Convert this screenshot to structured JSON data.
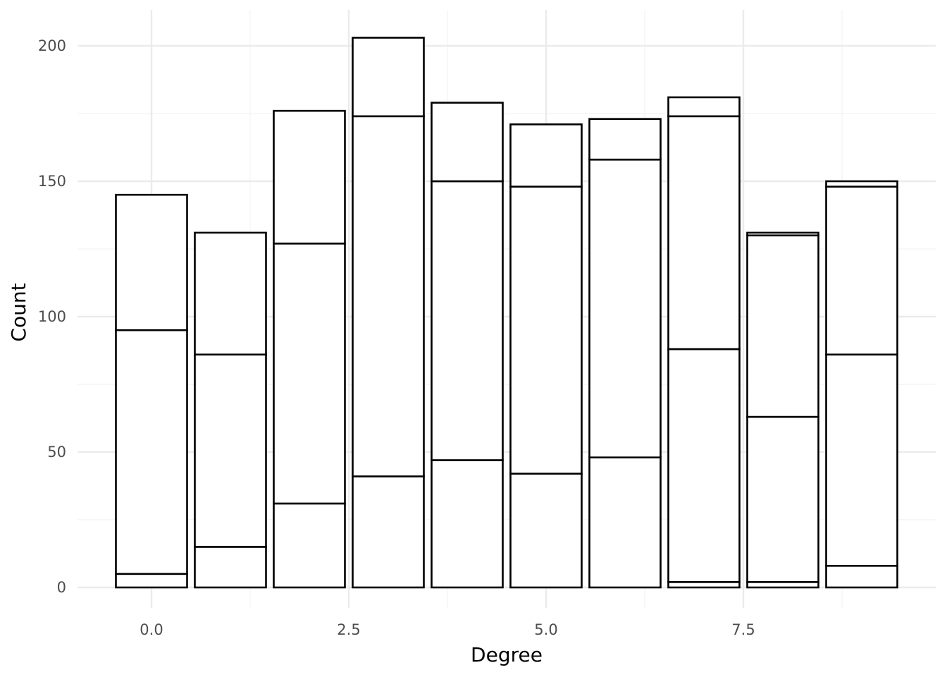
{
  "chart_data": {
    "type": "bar",
    "stacked": true,
    "title": "",
    "xlabel": "Degree",
    "ylabel": "Count",
    "x": [
      0,
      1,
      2,
      3,
      4,
      5,
      6,
      7,
      8,
      9
    ],
    "xlim": [
      -1,
      10
    ],
    "ylim": [
      0,
      210
    ],
    "x_ticks": [
      0,
      2.5,
      5,
      7.5
    ],
    "x_tick_labels": [
      "0.0",
      "2.5",
      "5.0",
      "7.5"
    ],
    "y_ticks": [
      0,
      50,
      100,
      150,
      200
    ],
    "y_tick_labels": [
      "0",
      "50",
      "100",
      "150",
      "200"
    ],
    "grid": true,
    "legend": "none",
    "colors": {
      "fill": "#ffffff",
      "outline": "#000000",
      "grid_major": "#ebebeb",
      "grid_minor": "#f2f2f2"
    },
    "series": [
      {
        "values": [
          5,
          15,
          31,
          41,
          47,
          42,
          48,
          2,
          2,
          8
        ]
      },
      {
        "values": [
          90,
          71,
          96,
          133,
          103,
          106,
          110,
          86,
          61,
          78
        ]
      },
      {
        "values": [
          50,
          45,
          49,
          29,
          29,
          23,
          15,
          86,
          67,
          62
        ]
      },
      {
        "values": [
          0,
          0,
          0,
          0,
          0,
          0,
          0,
          7,
          1,
          2
        ]
      }
    ],
    "totals": [
      145,
      131,
      176,
      203,
      179,
      171,
      173,
      181,
      131,
      150
    ]
  }
}
